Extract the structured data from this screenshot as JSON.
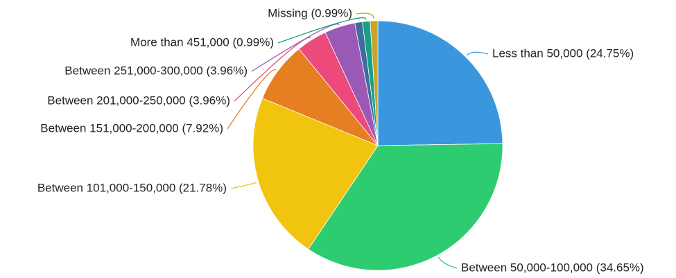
{
  "chart_data": {
    "type": "pie",
    "categories": [
      "Less than 50,000 (24.75%)",
      "Between 50,000-100,000 (34.65%)",
      "Between 101,000-150,000 (21.78%)",
      "Between 151,000-200,000 (7.92%)",
      "Between 201,000-250,000 (3.96%)",
      "Between 251,000-300,000 (3.96%)",
      null,
      "More than 451,000 (0.99%)",
      "Missing (0.99%)"
    ],
    "values": [
      24.75,
      34.65,
      21.78,
      7.92,
      3.96,
      3.96,
      0.99,
      0.99,
      0.99
    ],
    "colors": [
      "#3b97dd",
      "#2ecc71",
      "#f1c40f",
      "#e67e22",
      "#ec4a7b",
      "#9b59b6",
      "#3d6e9e",
      "#17a085",
      "#c9a227"
    ]
  }
}
